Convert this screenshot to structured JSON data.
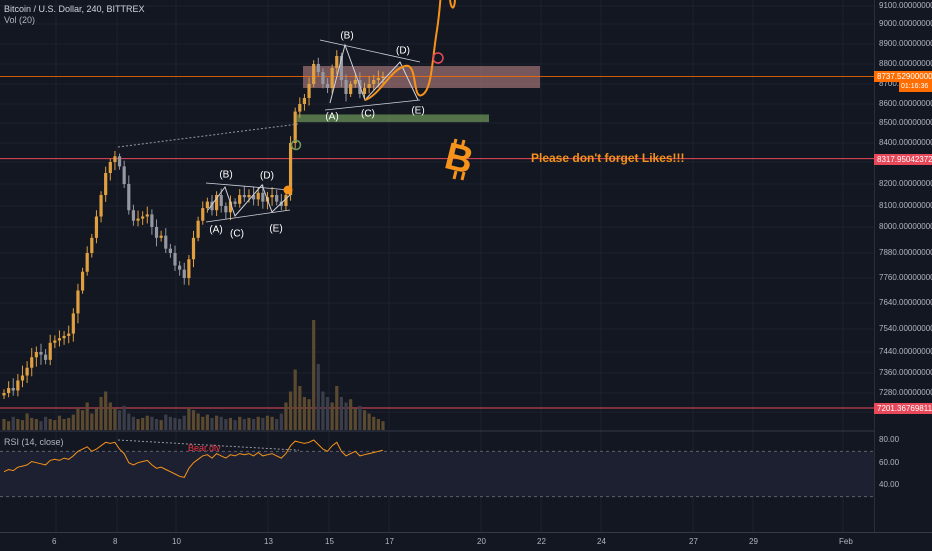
{
  "header": {
    "symbol_title": "Bitcoin / U.S. Dollar, 240, BITTREX",
    "volume_label": "Vol (20)",
    "rsi_label": "RSI (14, close)"
  },
  "price_axis": {
    "ticks": [
      "9100.00000000",
      "9000.00000000",
      "8900.00000000",
      "8800.00000000",
      "8700.00000000",
      "8600.00000000",
      "8500.00000000",
      "8400.00000000",
      "8300.00000000",
      "8200.00000000",
      "8100.00000000",
      "8000.00000000",
      "7880.00000000",
      "7760.00000000",
      "7640.00000000",
      "7540.00000000",
      "7440.00000000",
      "7360.00000000",
      "7280.00000000",
      "7200.00000000"
    ],
    "tags": [
      {
        "label": "8737.52900000",
        "color": "#ff6d00",
        "price": 8737.529
      },
      {
        "label": "8317.95042372",
        "color": "#e8495a",
        "price": 8317.95
      },
      {
        "label": "7201.36769811",
        "color": "#e8495a",
        "price": 7201.37
      }
    ],
    "countdown": "01:16:36",
    "rsi_ticks": [
      "80.00",
      "60.00",
      "40.00"
    ]
  },
  "time_axis": {
    "ticks": [
      "6",
      "8",
      "10",
      "13",
      "15",
      "17",
      "20",
      "22",
      "24",
      "27",
      "29",
      "Feb"
    ]
  },
  "annotations": {
    "small_triangle": [
      "(A)",
      "(B)",
      "(C)",
      "(D)",
      "(E)"
    ],
    "big_triangle": [
      "(A)",
      "(B)",
      "(C)",
      "(D)",
      "(E)"
    ],
    "likes_text": "Please don't forget Likes!!!",
    "bear_div": "Bear.div",
    "logo_letter": "B"
  },
  "colors": {
    "background": "#131722",
    "candle": "#e0a040",
    "candle_dark": "#7d6a4f",
    "accent": "#f7931a",
    "resistance_zone": "#c98c8c",
    "support_zone": "#6f9a5a",
    "level_line": "#e8495a"
  },
  "chart_data": {
    "type": "candlestick",
    "title": "Bitcoin / U.S. Dollar, 240, BITTREX",
    "timeframe": "240",
    "x_ticks": [
      "6",
      "8",
      "10",
      "13",
      "15",
      "17",
      "20",
      "22",
      "24",
      "27",
      "29",
      "Feb"
    ],
    "price_close": [
      7280,
      7300,
      7290,
      7330,
      7350,
      7380,
      7420,
      7440,
      7430,
      7410,
      7480,
      7490,
      7500,
      7510,
      7520,
      7600,
      7700,
      7790,
      7880,
      7950,
      8050,
      8150,
      8250,
      8300,
      8330,
      8280,
      8200,
      8080,
      8030,
      8040,
      8050,
      8060,
      8000,
      7950,
      7960,
      7900,
      7880,
      7820,
      7800,
      7760,
      7850,
      7950,
      8030,
      8090,
      8120,
      8080,
      8150,
      8100,
      8070,
      8120,
      8110,
      8150,
      8140,
      8150,
      8130,
      8160,
      8120,
      8140,
      8150,
      8120,
      8100,
      8150,
      8400,
      8560,
      8600,
      8630,
      8700,
      8800,
      8760,
      8700,
      8680,
      8780,
      8840,
      8720,
      8650,
      8700,
      8720,
      8650,
      8680,
      8700,
      8720,
      8730,
      8737.53
    ],
    "volume_relative": [
      0.1,
      0.08,
      0.12,
      0.1,
      0.09,
      0.15,
      0.11,
      0.1,
      0.08,
      0.12,
      0.1,
      0.09,
      0.13,
      0.1,
      0.11,
      0.14,
      0.2,
      0.18,
      0.25,
      0.15,
      0.2,
      0.3,
      0.35,
      0.25,
      0.2,
      0.18,
      0.22,
      0.15,
      0.12,
      0.1,
      0.11,
      0.13,
      0.12,
      0.1,
      0.09,
      0.14,
      0.12,
      0.11,
      0.1,
      0.13,
      0.2,
      0.18,
      0.15,
      0.12,
      0.14,
      0.11,
      0.13,
      0.12,
      0.1,
      0.11,
      0.09,
      0.12,
      0.1,
      0.11,
      0.1,
      0.12,
      0.11,
      0.13,
      0.12,
      0.1,
      0.15,
      0.25,
      0.35,
      0.55,
      0.4,
      0.3,
      0.28,
      1.0,
      0.6,
      0.35,
      0.3,
      0.25,
      0.4,
      0.3,
      0.25,
      0.28,
      0.2,
      0.22,
      0.18,
      0.15,
      0.12,
      0.1,
      0.08
    ],
    "rsi": [
      52,
      54,
      53,
      56,
      57,
      58,
      61,
      60,
      59,
      58,
      62,
      63,
      62,
      64,
      63,
      66,
      70,
      72,
      74,
      70,
      72,
      75,
      78,
      77,
      78,
      72,
      68,
      60,
      58,
      60,
      61,
      62,
      58,
      55,
      56,
      54,
      52,
      50,
      48,
      47,
      55,
      60,
      63,
      66,
      67,
      64,
      68,
      66,
      64,
      67,
      66,
      68,
      67,
      68,
      66,
      69,
      66,
      67,
      68,
      66,
      64,
      68,
      75,
      79,
      78,
      77,
      78,
      80,
      76,
      72,
      70,
      75,
      78,
      70,
      66,
      68,
      70,
      66,
      67,
      68,
      69,
      70,
      71
    ],
    "rsi_ylim": [
      20,
      80
    ],
    "horizontal_levels": [
      8737.529,
      8317.95042372,
      7201.36769811
    ],
    "resistance_zone": [
      8680,
      8790
    ],
    "support_zone": [
      8510,
      8545
    ]
  }
}
